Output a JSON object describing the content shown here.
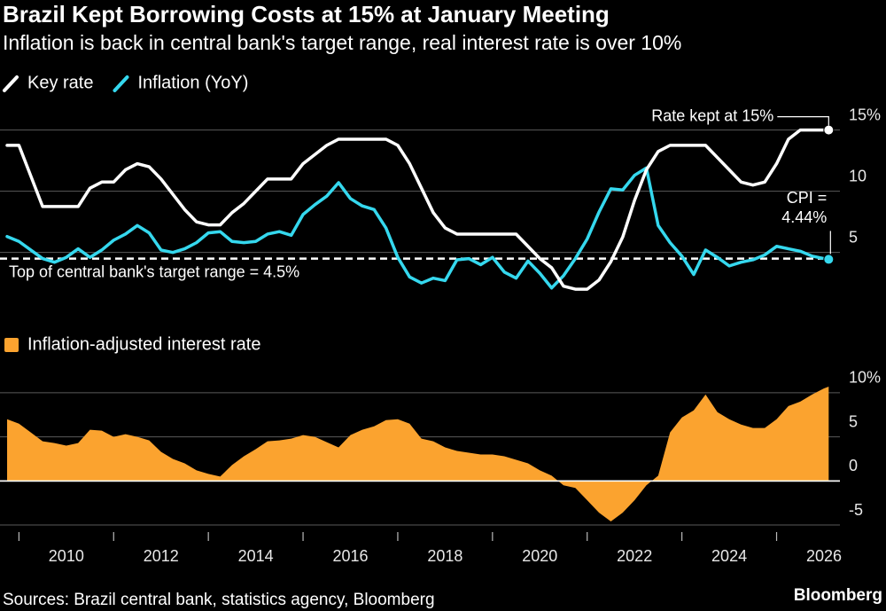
{
  "title": "Brazil Kept Borrowing Costs at 15% at January Meeting",
  "subtitle": "Inflation is back in central bank's target range, real interest rate is over 10%",
  "source": "Sources: Brazil central bank, statistics agency, Bloomberg",
  "brand": "Bloomberg",
  "chart_data": [
    {
      "type": "line",
      "xlim": [
        2008.6,
        2026.3
      ],
      "ylim": [
        1.5,
        17
      ],
      "yticks": [
        5,
        10,
        {
          "value": 15,
          "label": "15%"
        }
      ],
      "grid": true,
      "legend": "top-left",
      "x": [
        2008.75,
        2009,
        2009.25,
        2009.5,
        2009.75,
        2010,
        2010.25,
        2010.5,
        2010.75,
        2011,
        2011.25,
        2011.5,
        2011.75,
        2012,
        2012.25,
        2012.5,
        2012.75,
        2013,
        2013.25,
        2013.5,
        2013.75,
        2014,
        2014.25,
        2014.5,
        2014.75,
        2015,
        2015.25,
        2015.5,
        2015.75,
        2016,
        2016.25,
        2016.5,
        2016.75,
        2017,
        2017.25,
        2017.5,
        2017.75,
        2018,
        2018.25,
        2018.5,
        2018.75,
        2019,
        2019.25,
        2019.5,
        2019.75,
        2020,
        2020.25,
        2020.5,
        2020.75,
        2021,
        2021.25,
        2021.5,
        2021.75,
        2022,
        2022.25,
        2022.5,
        2022.75,
        2023,
        2023.25,
        2023.5,
        2023.75,
        2024,
        2024.25,
        2024.5,
        2024.75,
        2025,
        2025.25,
        2025.5,
        2025.75,
        2026,
        2026.1
      ],
      "series": [
        {
          "name": "Key rate",
          "color": "#ffffff",
          "values": [
            13.75,
            13.75,
            11.25,
            8.75,
            8.75,
            8.75,
            8.75,
            10.25,
            10.75,
            10.75,
            11.75,
            12.25,
            12.0,
            11.0,
            9.75,
            8.5,
            7.5,
            7.25,
            7.25,
            8.25,
            9.0,
            10.0,
            11.0,
            11.0,
            11.0,
            12.25,
            13.0,
            13.75,
            14.25,
            14.25,
            14.25,
            14.25,
            14.25,
            13.75,
            12.25,
            10.25,
            8.25,
            7.0,
            6.5,
            6.5,
            6.5,
            6.5,
            6.5,
            6.5,
            5.5,
            4.5,
            3.75,
            2.25,
            2.0,
            2.0,
            2.75,
            4.25,
            6.25,
            9.25,
            11.75,
            13.25,
            13.75,
            13.75,
            13.75,
            13.75,
            12.75,
            11.75,
            10.75,
            10.5,
            10.75,
            12.25,
            14.25,
            15.0,
            15.0,
            15.0,
            15.0
          ]
        },
        {
          "name": "Inflation (YoY)",
          "color": "#35d8ee",
          "values": [
            6.3,
            5.9,
            5.2,
            4.5,
            4.2,
            4.6,
            5.3,
            4.6,
            5.2,
            6.0,
            6.5,
            7.2,
            6.6,
            5.2,
            5.0,
            5.3,
            5.8,
            6.6,
            6.7,
            5.9,
            5.8,
            5.9,
            6.5,
            6.7,
            6.4,
            8.1,
            8.9,
            9.6,
            10.7,
            9.4,
            8.8,
            8.5,
            7.0,
            4.6,
            3.0,
            2.5,
            2.9,
            2.7,
            4.4,
            4.5,
            4.0,
            4.6,
            3.4,
            2.9,
            4.3,
            3.3,
            2.1,
            3.1,
            4.5,
            6.1,
            8.3,
            10.2,
            10.1,
            11.3,
            11.9,
            7.2,
            5.8,
            4.7,
            3.2,
            5.2,
            4.6,
            3.9,
            4.2,
            4.4,
            4.8,
            5.5,
            5.3,
            5.1,
            4.7,
            4.5,
            4.44
          ]
        }
      ],
      "reference_line": {
        "value": 4.5,
        "label": "Top of central bank's target range = 4.5%"
      },
      "annotations": [
        {
          "series": 0,
          "text": [
            "Rate kept at 15%"
          ]
        },
        {
          "series": 1,
          "text": [
            "CPI =",
            "4.44%"
          ]
        }
      ]
    },
    {
      "type": "area",
      "xlim": [
        2008.6,
        2026.3
      ],
      "ylim": [
        -5.2,
        11.2
      ],
      "yticks": [
        -5,
        0,
        5,
        {
          "value": 10,
          "label": "10%"
        }
      ],
      "xticks": [
        2010,
        2012,
        2014,
        2016,
        2018,
        2020,
        2022,
        2024,
        2026
      ],
      "xminorticks": [
        2009,
        2011,
        2013,
        2015,
        2017,
        2019,
        2021,
        2023,
        2025
      ],
      "grid": true,
      "legend": "top-left",
      "x": [
        2008.75,
        2009,
        2009.25,
        2009.5,
        2009.75,
        2010,
        2010.25,
        2010.5,
        2010.75,
        2011,
        2011.25,
        2011.5,
        2011.75,
        2012,
        2012.25,
        2012.5,
        2012.75,
        2013,
        2013.25,
        2013.5,
        2013.75,
        2014,
        2014.25,
        2014.5,
        2014.75,
        2015,
        2015.25,
        2015.5,
        2015.75,
        2016,
        2016.25,
        2016.5,
        2016.75,
        2017,
        2017.25,
        2017.5,
        2017.75,
        2018,
        2018.25,
        2018.5,
        2018.75,
        2019,
        2019.25,
        2019.5,
        2019.75,
        2020,
        2020.25,
        2020.5,
        2020.75,
        2021,
        2021.25,
        2021.5,
        2021.75,
        2022,
        2022.25,
        2022.5,
        2022.75,
        2023,
        2023.25,
        2023.5,
        2023.75,
        2024,
        2024.25,
        2024.5,
        2024.75,
        2025,
        2025.25,
        2025.5,
        2025.75,
        2026,
        2026.1
      ],
      "series": [
        {
          "name": "Inflation-adjusted interest rate",
          "color": "#fba32f",
          "values": [
            7.0,
            6.5,
            5.5,
            4.5,
            4.3,
            4.0,
            4.3,
            5.8,
            5.7,
            5.0,
            5.3,
            5.0,
            4.6,
            3.3,
            2.5,
            2.0,
            1.2,
            0.8,
            0.5,
            1.8,
            2.8,
            3.6,
            4.5,
            4.6,
            4.8,
            5.2,
            5.0,
            4.4,
            3.8,
            5.2,
            5.8,
            6.2,
            6.9,
            7.0,
            6.5,
            4.8,
            4.5,
            3.8,
            3.4,
            3.2,
            3.0,
            3.0,
            2.8,
            2.4,
            2.0,
            1.2,
            0.6,
            -0.5,
            -0.8,
            -2.2,
            -3.6,
            -4.6,
            -3.6,
            -2.2,
            -0.5,
            0.6,
            5.5,
            7.2,
            8.0,
            9.8,
            7.8,
            7.0,
            6.4,
            6.0,
            6.0,
            7.0,
            8.5,
            9.0,
            9.8,
            10.5,
            10.7
          ]
        }
      ]
    }
  ]
}
